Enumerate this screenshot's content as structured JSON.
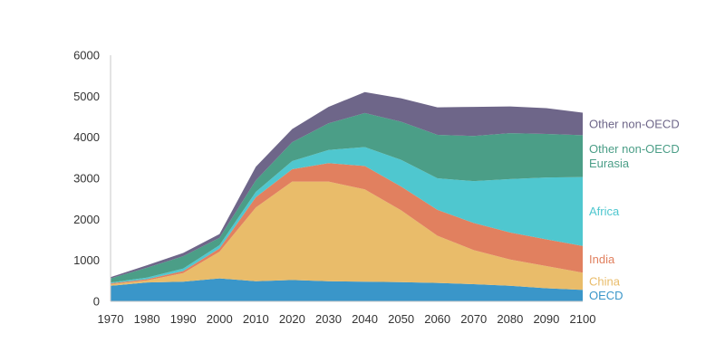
{
  "chart_data": {
    "type": "area",
    "stacked": true,
    "x": [
      1970,
      1980,
      1990,
      2000,
      2010,
      2020,
      2030,
      2040,
      2050,
      2060,
      2070,
      2080,
      2090,
      2100
    ],
    "xlim": [
      1970,
      2100
    ],
    "ylim": [
      0,
      6000
    ],
    "yticks": [
      0,
      1000,
      2000,
      3000,
      4000,
      5000,
      6000
    ],
    "xticks": [
      1970,
      1980,
      1990,
      2000,
      2010,
      2020,
      2030,
      2040,
      2050,
      2060,
      2070,
      2080,
      2090,
      2100
    ],
    "grid": false,
    "legend": "right, inline labels",
    "series": [
      {
        "name": "OECD",
        "color": "#3a96c9",
        "values": [
          380,
          460,
          480,
          560,
          490,
          520,
          490,
          480,
          470,
          450,
          420,
          380,
          320,
          280
        ]
      },
      {
        "name": "China",
        "color": "#e9bc6a",
        "values": [
          40,
          50,
          210,
          650,
          1800,
          2400,
          2430,
          2250,
          1750,
          1150,
          830,
          640,
          540,
          420
        ]
      },
      {
        "name": "India",
        "color": "#e1805f",
        "values": [
          20,
          30,
          50,
          80,
          250,
          300,
          450,
          570,
          580,
          630,
          660,
          660,
          650,
          650
        ]
      },
      {
        "name": "Africa",
        "color": "#4fc7cf",
        "values": [
          20,
          40,
          60,
          80,
          130,
          200,
          320,
          460,
          650,
          770,
          1020,
          1300,
          1510,
          1680
        ]
      },
      {
        "name": "Other non-OECD Eurasia",
        "color": "#4b9e87",
        "values": [
          100,
          240,
          300,
          180,
          280,
          460,
          650,
          830,
          930,
          1060,
          1100,
          1120,
          1060,
          1020
        ]
      },
      {
        "name": "Other non-OECD",
        "color": "#6e6689",
        "values": [
          30,
          60,
          80,
          90,
          330,
          320,
          400,
          510,
          570,
          670,
          710,
          650,
          630,
          550
        ]
      }
    ],
    "labels": [
      {
        "series": "Other non-OECD",
        "lines": [
          "Other non-OECD"
        ]
      },
      {
        "series": "Other non-OECD Eurasia",
        "lines": [
          "Other non-OECD",
          "Eurasia"
        ]
      },
      {
        "series": "Africa",
        "lines": [
          "Africa"
        ]
      },
      {
        "series": "India",
        "lines": [
          "India"
        ]
      },
      {
        "series": "China",
        "lines": [
          "China"
        ]
      },
      {
        "series": "OECD",
        "lines": [
          "OECD"
        ]
      }
    ]
  }
}
